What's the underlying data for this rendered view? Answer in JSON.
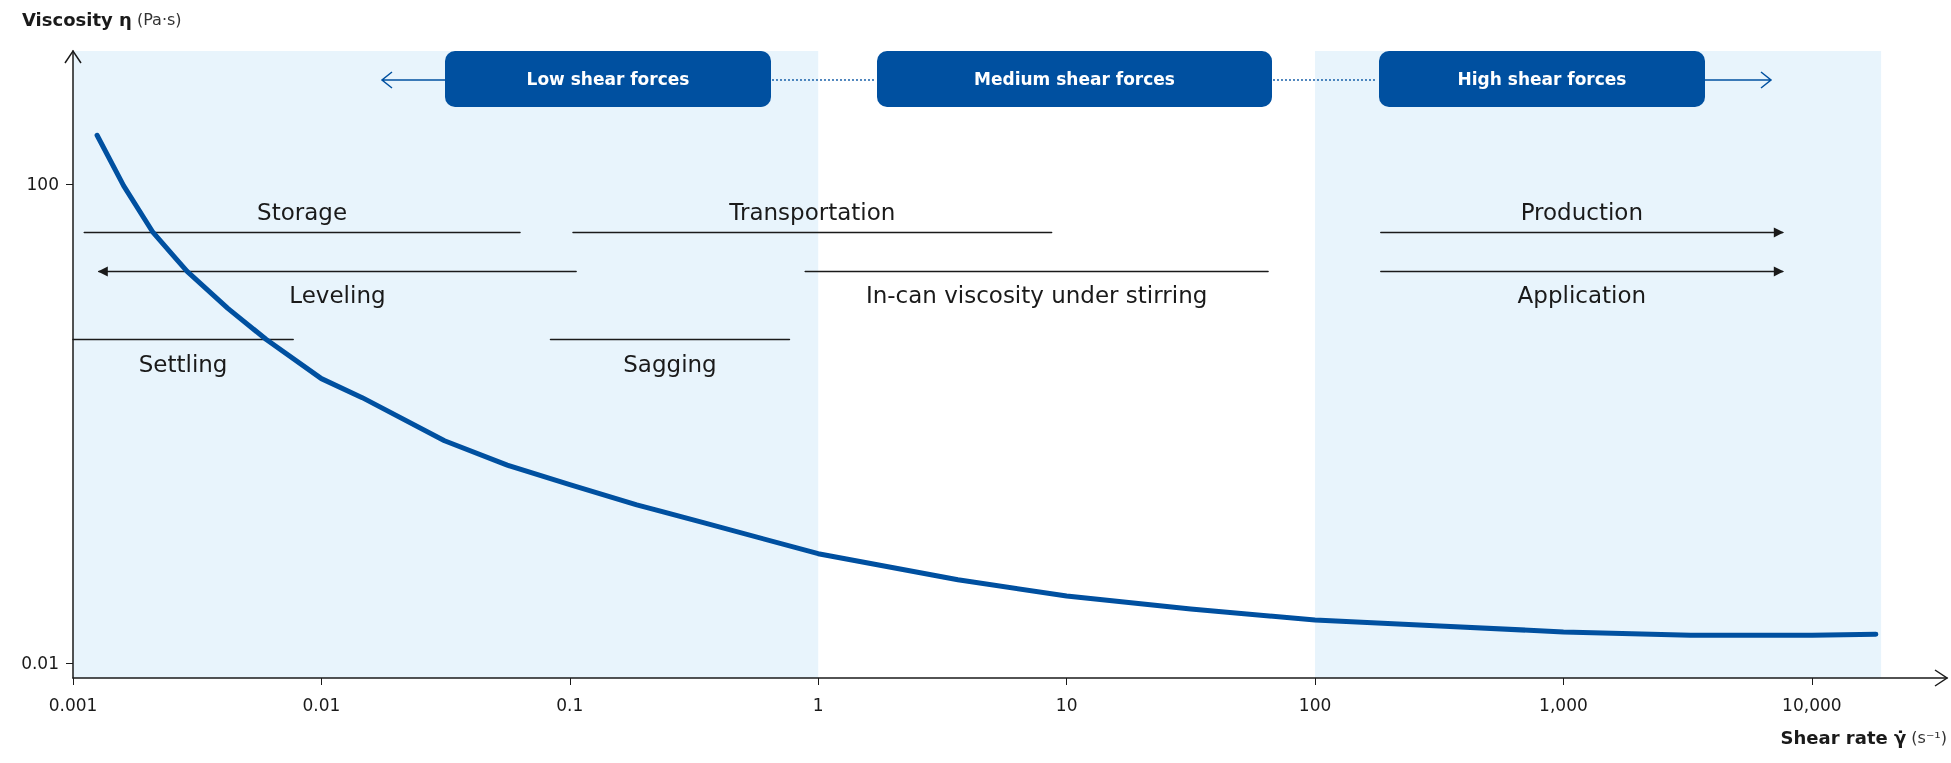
{
  "chart_data": {
    "type": "line",
    "xlabel": "Shear rate γ̇ (s⁻¹)",
    "ylabel": "Viscosity η (Pa·s)",
    "log": "xy",
    "grid": false,
    "xlim": [
      0.001,
      35000
    ],
    "ylim": [
      0.0075,
      1300
    ],
    "xticks": [
      0.001,
      0.01,
      0.1,
      1,
      10,
      100,
      {
        "value": 1000,
        "label": "1,000"
      },
      {
        "value": 10000,
        "label": "10,000"
      }
    ],
    "yticks": [
      0.01,
      100
    ],
    "bands": [
      {
        "axis": "x",
        "from": 0.001,
        "to": 1,
        "color": "#e8f4fc"
      },
      {
        "axis": "x",
        "from": 100,
        "to": 19000,
        "color": "#e8f4fc"
      }
    ],
    "series": [
      {
        "color": "#0050a0",
        "marker": "none",
        "line_style": "solid",
        "x": [
          0.00125,
          0.0016,
          0.0021,
          0.00288,
          0.0042,
          0.006,
          0.01,
          0.0146,
          0.0313,
          0.056,
          0.1,
          0.186,
          0.345,
          1,
          3.65,
          10,
          31.6,
          100,
          318,
          1000,
          3250,
          10000,
          18100
        ],
        "values": [
          257,
          97,
          39.6,
          18.7,
          9.2,
          5.05,
          2.38,
          1.65,
          0.72,
          0.45,
          0.31,
          0.21,
          0.149,
          0.082,
          0.0496,
          0.0363,
          0.0283,
          0.0229,
          0.0204,
          0.0182,
          0.0171,
          0.0171,
          0.0174
        ]
      },
      {
        "name": "Storage",
        "color": "#1a1a1a",
        "marker": "none",
        "line_style": "solid",
        "x": [
          0.00111,
          0.063
        ],
        "values": [
          39.6,
          39.6
        ]
      },
      {
        "name": "Transportation",
        "color": "#1a1a1a",
        "marker": "none",
        "line_style": "solid",
        "x": [
          0.103,
          8.7
        ],
        "values": [
          39.6,
          39.6
        ]
      },
      {
        "name": "Production",
        "color": "#1a1a1a",
        "marker": "triangle",
        "line_style": "solid",
        "x": [
          184,
          7640
        ],
        "values": [
          39.6,
          39.6
        ]
      },
      {
        "name": "Leveling",
        "color": "#1a1a1a",
        "marker": "triangle",
        "line_style": "solid",
        "x": [
          0.106,
          0.00127
        ],
        "values": [
          18.7,
          18.7
        ]
      },
      {
        "name": "In-can viscosity under stirring",
        "color": "#1a1a1a",
        "marker": "none",
        "line_style": "solid",
        "x": [
          0.886,
          64.7
        ],
        "values": [
          18.7,
          18.7
        ]
      },
      {
        "name": "Application",
        "color": "#1a1a1a",
        "marker": "triangle",
        "line_style": "solid",
        "x": [
          184,
          7640
        ],
        "values": [
          18.7,
          18.7
        ]
      },
      {
        "name": "Settling",
        "color": "#1a1a1a",
        "marker": "none",
        "line_style": "solid",
        "x": [
          0.001,
          0.0077
        ],
        "values": [
          5.05,
          5.05
        ]
      },
      {
        "name": "Sagging",
        "color": "#1a1a1a",
        "marker": "none",
        "line_style": "solid",
        "x": [
          0.0836,
          0.766
        ],
        "values": [
          5.05,
          5.05
        ]
      }
    ],
    "annotations": [
      "Low shear forces",
      "Medium shear forces",
      "High shear forces"
    ]
  }
}
